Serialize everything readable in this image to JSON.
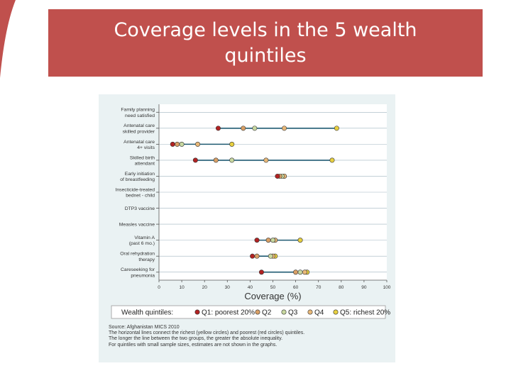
{
  "title": "Coverage levels in the 5 wealth quintiles",
  "colors": {
    "banner": "#c0504d",
    "plot_background": "#ffffff",
    "figure_background": "#eaf2f3",
    "range_line": "#1f5a72",
    "q1": "#b22222",
    "q2": "#d9a066",
    "q3": "#c8d8a0",
    "q4": "#e8b878",
    "q5": "#e8d040"
  },
  "chart_data": {
    "type": "scatter",
    "xlabel": "Coverage (%)",
    "xlim": [
      0,
      100
    ],
    "xticks": [
      "0",
      "10",
      "20",
      "30",
      "40",
      "50",
      "60",
      "70",
      "80",
      "90",
      "100"
    ],
    "grid": true,
    "legend_position": "bottom",
    "legend_title": "Wealth quintiles:",
    "series": [
      {
        "name": "Q1: poorest 20%"
      },
      {
        "name": "Q2"
      },
      {
        "name": "Q3"
      },
      {
        "name": "Q4"
      },
      {
        "name": "Q5: richest 20%"
      }
    ],
    "categories": [
      {
        "label": [
          "Family planning",
          "need satisfied"
        ],
        "values": null
      },
      {
        "label": [
          "Antenatal care",
          "skilled provider"
        ],
        "values": [
          26,
          37,
          42,
          55,
          78
        ]
      },
      {
        "label": [
          "Antenatal care",
          "4+ visits"
        ],
        "values": [
          6,
          8,
          10,
          17,
          32
        ]
      },
      {
        "label": [
          "Skilled birth",
          "attendant"
        ],
        "values": [
          16,
          25,
          32,
          47,
          76
        ]
      },
      {
        "label": [
          "Early initiation",
          "of breastfeeding"
        ],
        "values": [
          52,
          53,
          54,
          55,
          55
        ]
      },
      {
        "label": [
          "Insecticide-treated",
          "bednet - child"
        ],
        "values": null
      },
      {
        "label": [
          "DTP3 vaccine"
        ],
        "values": null
      },
      {
        "label": [
          "Measles vaccine"
        ],
        "values": null
      },
      {
        "label": [
          "Vitamin A",
          "(past 6 mo.)"
        ],
        "values": [
          43,
          48,
          50,
          51,
          62
        ]
      },
      {
        "label": [
          "Oral rehydration",
          "therapy"
        ],
        "values": [
          41,
          43,
          49,
          50,
          51
        ]
      },
      {
        "label": [
          "Careseeking for",
          "pneumonia"
        ],
        "values": [
          45,
          60,
          62,
          64,
          65
        ]
      }
    ]
  },
  "source": "Source: Afghanistan MICS 2010",
  "notes": [
    "The horizontal lines connect the richest (yellow circles) and poorest (red circles) quintiles.",
    "The longer the line between the two groups, the greater the absolute inequality.",
    "For quintiles with small sample sizes, estimates are not shown in the graphs."
  ]
}
